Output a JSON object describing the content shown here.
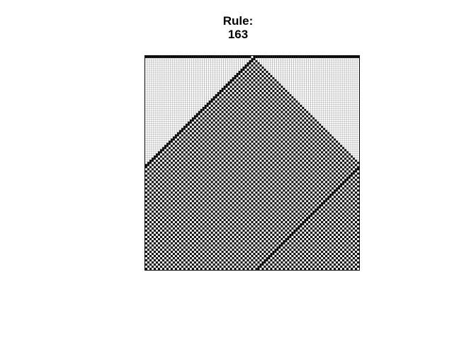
{
  "title": {
    "line1": "Rule:",
    "line2": "163"
  },
  "automaton": {
    "rule_number": 163,
    "width_cells": 101,
    "generations": 101,
    "initial_state": "single-seed-center",
    "boundary": "periodic",
    "colors": {
      "on": "#ffffff",
      "off": "#000000",
      "cell_edge": "#6e6e6e"
    }
  }
}
